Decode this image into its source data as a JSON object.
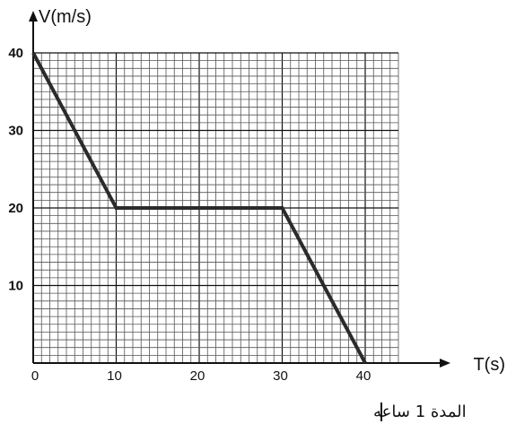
{
  "chart_data": {
    "type": "line",
    "xlabel": "T(s)",
    "ylabel": "V(m/s)",
    "x_ticks": [
      {
        "value": 0,
        "label": "0"
      },
      {
        "value": 10,
        "label": "10"
      },
      {
        "value": 20,
        "label": "20"
      },
      {
        "value": 30,
        "label": "30"
      },
      {
        "value": 40,
        "label": "40"
      }
    ],
    "y_ticks": [
      {
        "value": 10,
        "label": "10"
      },
      {
        "value": 20,
        "label": "20"
      },
      {
        "value": 30,
        "label": "30"
      },
      {
        "value": 40,
        "label": "40"
      }
    ],
    "xlim": [
      0,
      44
    ],
    "ylim": [
      0,
      40
    ],
    "grid": true,
    "grid_minor_step": 1,
    "grid_major_step": 10,
    "series": [
      {
        "points": [
          {
            "x": 0,
            "y": 40
          },
          {
            "x": 10,
            "y": 20
          },
          {
            "x": 30,
            "y": 20
          },
          {
            "x": 40,
            "y": 0
          }
        ],
        "color": "#2b2b2b"
      }
    ],
    "caption": "المدة 1 ساعه"
  }
}
